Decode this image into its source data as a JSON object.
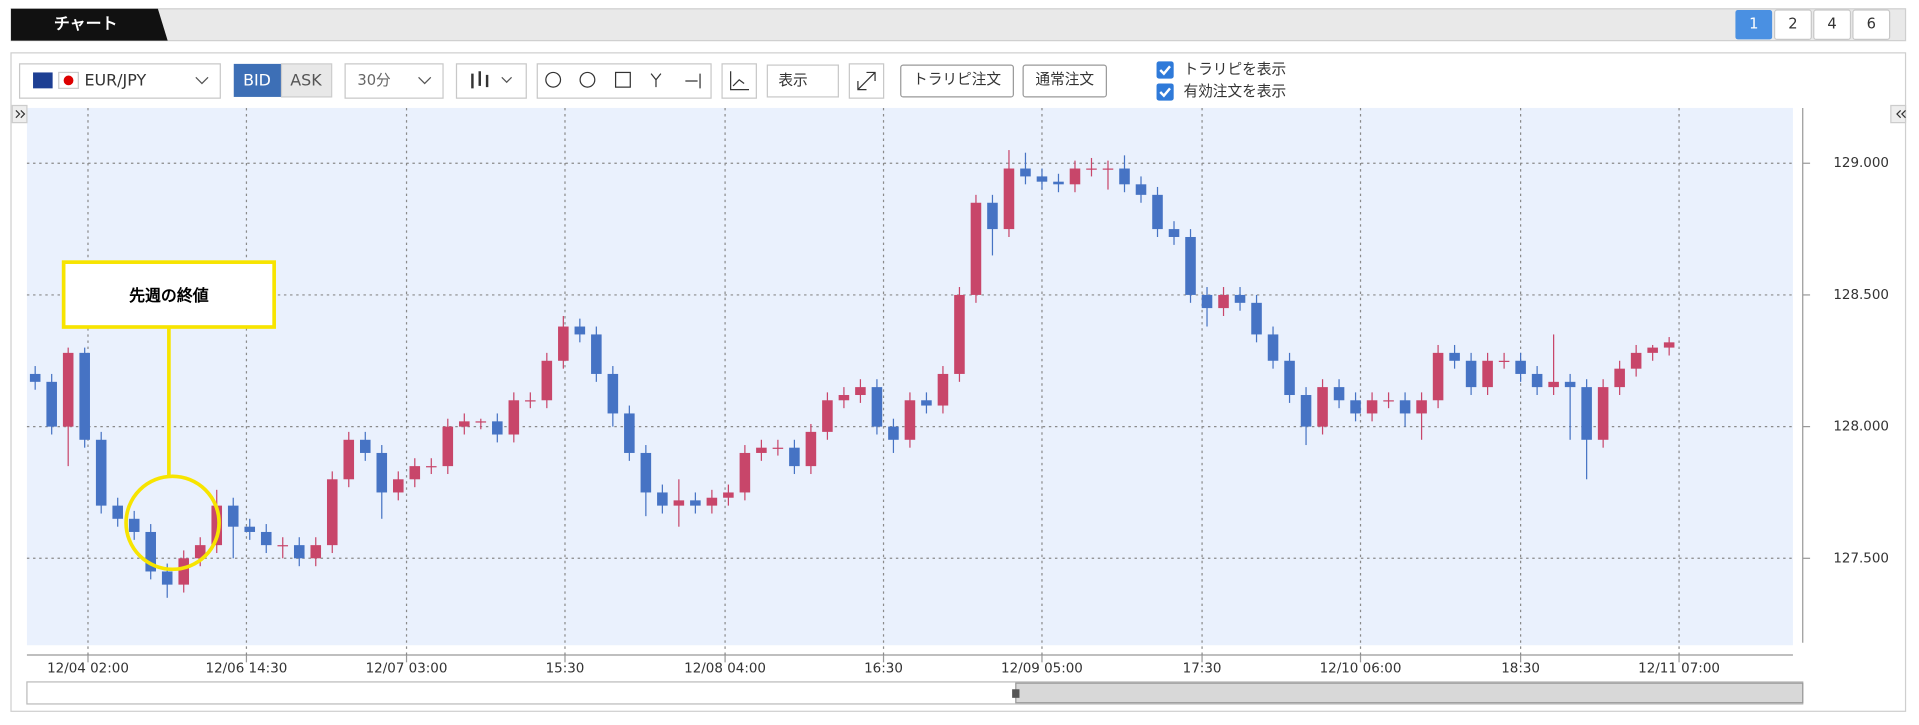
{
  "tab_title": "チャート",
  "pages": [
    "1",
    "2",
    "4",
    "6"
  ],
  "toolbar": {
    "symbol": "EUR/JPY",
    "bid": "BID",
    "ask": "ASK",
    "interval": "30分",
    "display": "表示",
    "trap_order": "トラリピ注文",
    "normal_order": "通常注文",
    "checkboxes": [
      "トラリピを表示",
      "有効注文を表示"
    ]
  },
  "chart_data": {
    "type": "candlestick",
    "annotation": "先週の終値",
    "up_color": "#c8466a",
    "down_color": "#4673c4",
    "grid": true,
    "xlim": [
      0,
      107
    ],
    "ylim": [
      127.17,
      129.21
    ],
    "xticks": [
      {
        "value": 3.7,
        "label": "12/04 02:00"
      },
      {
        "value": 13.3,
        "label": "12/06 14:30"
      },
      {
        "value": 23.0,
        "label": "12/07 03:00"
      },
      {
        "value": 32.6,
        "label": "15:30"
      },
      {
        "value": 42.3,
        "label": "12/08 04:00"
      },
      {
        "value": 51.9,
        "label": "16:30"
      },
      {
        "value": 61.5,
        "label": "12/09 05:00"
      },
      {
        "value": 71.2,
        "label": "17:30"
      },
      {
        "value": 80.8,
        "label": "12/10 06:00"
      },
      {
        "value": 90.5,
        "label": "18:30"
      },
      {
        "value": 100.1,
        "label": "12/11 07:00"
      }
    ],
    "yticks": [
      {
        "value": 127.5,
        "label": "127.500"
      },
      {
        "value": 128,
        "label": "128.000"
      },
      {
        "value": 128.5,
        "label": "128.500"
      },
      {
        "value": 129,
        "label": "129.000"
      }
    ],
    "ohlc": [
      [
        128.2,
        128.23,
        128.14,
        128.17
      ],
      [
        128.17,
        128.2,
        127.97,
        128.0
      ],
      [
        128.0,
        128.3,
        127.85,
        128.28
      ],
      [
        128.28,
        128.3,
        127.92,
        127.95
      ],
      [
        127.95,
        127.98,
        127.67,
        127.7
      ],
      [
        127.7,
        127.73,
        127.62,
        127.65
      ],
      [
        127.65,
        127.68,
        127.57,
        127.6
      ],
      [
        127.6,
        127.63,
        127.42,
        127.45
      ],
      [
        127.45,
        127.48,
        127.35,
        127.4
      ],
      [
        127.4,
        127.53,
        127.37,
        127.5
      ],
      [
        127.5,
        127.58,
        127.47,
        127.55
      ],
      [
        127.55,
        127.76,
        127.52,
        127.7
      ],
      [
        127.7,
        127.73,
        127.5,
        127.62
      ],
      [
        127.62,
        127.65,
        127.57,
        127.6
      ],
      [
        127.6,
        127.63,
        127.52,
        127.55
      ],
      [
        127.55,
        127.58,
        127.5,
        127.55
      ],
      [
        127.55,
        127.58,
        127.47,
        127.5
      ],
      [
        127.5,
        127.58,
        127.47,
        127.55
      ],
      [
        127.55,
        127.83,
        127.52,
        127.8
      ],
      [
        127.8,
        127.98,
        127.77,
        127.95
      ],
      [
        127.95,
        127.98,
        127.87,
        127.9
      ],
      [
        127.9,
        127.93,
        127.65,
        127.75
      ],
      [
        127.75,
        127.83,
        127.72,
        127.8
      ],
      [
        127.8,
        127.88,
        127.77,
        127.85
      ],
      [
        127.85,
        127.88,
        127.82,
        127.85
      ],
      [
        127.85,
        128.03,
        127.82,
        128.0
      ],
      [
        128.0,
        128.05,
        127.97,
        128.02
      ],
      [
        128.02,
        128.03,
        127.99,
        128.02
      ],
      [
        128.02,
        128.05,
        127.94,
        127.97
      ],
      [
        127.97,
        128.13,
        127.94,
        128.1
      ],
      [
        128.1,
        128.13,
        128.07,
        128.1
      ],
      [
        128.1,
        128.28,
        128.07,
        128.25
      ],
      [
        128.25,
        128.42,
        128.22,
        128.38
      ],
      [
        128.38,
        128.41,
        128.32,
        128.35
      ],
      [
        128.35,
        128.38,
        128.17,
        128.2
      ],
      [
        128.2,
        128.23,
        128.0,
        128.05
      ],
      [
        128.05,
        128.08,
        127.87,
        127.9
      ],
      [
        127.9,
        127.93,
        127.66,
        127.75
      ],
      [
        127.75,
        127.78,
        127.67,
        127.7
      ],
      [
        127.7,
        127.8,
        127.62,
        127.72
      ],
      [
        127.72,
        127.75,
        127.67,
        127.7
      ],
      [
        127.7,
        127.76,
        127.67,
        127.73
      ],
      [
        127.73,
        127.78,
        127.7,
        127.75
      ],
      [
        127.75,
        127.93,
        127.72,
        127.9
      ],
      [
        127.9,
        127.95,
        127.87,
        127.92
      ],
      [
        127.92,
        127.95,
        127.89,
        127.92
      ],
      [
        127.92,
        127.95,
        127.82,
        127.85
      ],
      [
        127.85,
        128.01,
        127.82,
        127.98
      ],
      [
        127.98,
        128.13,
        127.95,
        128.1
      ],
      [
        128.1,
        128.15,
        128.07,
        128.12
      ],
      [
        128.12,
        128.18,
        128.09,
        128.15
      ],
      [
        128.15,
        128.18,
        127.97,
        128.0
      ],
      [
        128.0,
        128.03,
        127.9,
        127.95
      ],
      [
        127.95,
        128.13,
        127.92,
        128.1
      ],
      [
        128.1,
        128.13,
        128.05,
        128.08
      ],
      [
        128.08,
        128.23,
        128.05,
        128.2
      ],
      [
        128.2,
        128.53,
        128.17,
        128.5
      ],
      [
        128.5,
        128.88,
        128.47,
        128.85
      ],
      [
        128.85,
        128.88,
        128.65,
        128.75
      ],
      [
        128.75,
        129.05,
        128.72,
        128.98
      ],
      [
        128.98,
        129.04,
        128.92,
        128.95
      ],
      [
        128.95,
        128.98,
        128.9,
        128.93
      ],
      [
        128.93,
        128.96,
        128.89,
        128.92
      ],
      [
        128.92,
        129.01,
        128.89,
        128.98
      ],
      [
        128.98,
        129.02,
        128.95,
        128.98
      ],
      [
        128.98,
        129.01,
        128.9,
        128.98
      ],
      [
        128.98,
        129.03,
        128.89,
        128.92
      ],
      [
        128.92,
        128.95,
        128.85,
        128.88
      ],
      [
        128.88,
        128.91,
        128.72,
        128.75
      ],
      [
        128.75,
        128.78,
        128.69,
        128.72
      ],
      [
        128.72,
        128.75,
        128.47,
        128.5
      ],
      [
        128.5,
        128.53,
        128.38,
        128.45
      ],
      [
        128.45,
        128.53,
        128.42,
        128.5
      ],
      [
        128.5,
        128.53,
        128.44,
        128.47
      ],
      [
        128.47,
        128.5,
        128.32,
        128.35
      ],
      [
        128.35,
        128.38,
        128.22,
        128.25
      ],
      [
        128.25,
        128.28,
        128.09,
        128.12
      ],
      [
        128.12,
        128.15,
        127.93,
        128.0
      ],
      [
        128.0,
        128.18,
        127.97,
        128.15
      ],
      [
        128.15,
        128.18,
        128.07,
        128.1
      ],
      [
        128.1,
        128.13,
        128.02,
        128.05
      ],
      [
        128.05,
        128.13,
        128.02,
        128.1
      ],
      [
        128.1,
        128.13,
        128.07,
        128.1
      ],
      [
        128.1,
        128.13,
        128.0,
        128.05
      ],
      [
        128.05,
        128.13,
        127.95,
        128.1
      ],
      [
        128.1,
        128.31,
        128.07,
        128.28
      ],
      [
        128.28,
        128.31,
        128.22,
        128.25
      ],
      [
        128.25,
        128.28,
        128.12,
        128.15
      ],
      [
        128.15,
        128.28,
        128.12,
        128.25
      ],
      [
        128.25,
        128.28,
        128.22,
        128.25
      ],
      [
        128.25,
        128.28,
        128.17,
        128.2
      ],
      [
        128.2,
        128.23,
        128.12,
        128.15
      ],
      [
        128.15,
        128.35,
        128.12,
        128.17
      ],
      [
        128.17,
        128.2,
        127.95,
        128.15
      ],
      [
        128.15,
        128.18,
        127.8,
        127.95
      ],
      [
        127.95,
        128.18,
        127.92,
        128.15
      ],
      [
        128.15,
        128.25,
        128.12,
        128.22
      ],
      [
        128.22,
        128.31,
        128.19,
        128.28
      ],
      [
        128.28,
        128.31,
        128.25,
        128.3
      ],
      [
        128.3,
        128.34,
        128.27,
        128.32
      ]
    ]
  }
}
